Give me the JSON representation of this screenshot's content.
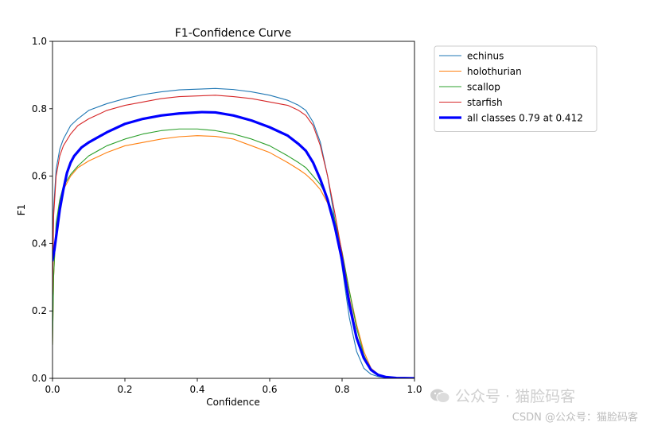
{
  "chart_data": {
    "type": "line",
    "title": "F1-Confidence Curve",
    "xlabel": "Confidence",
    "ylabel": "F1",
    "xlim": [
      0,
      1
    ],
    "ylim": [
      0,
      1
    ],
    "xticks": [
      "0.0",
      "0.2",
      "0.4",
      "0.6",
      "0.8",
      "1.0"
    ],
    "yticks": [
      "0.0",
      "0.2",
      "0.4",
      "0.6",
      "0.8",
      "1.0"
    ],
    "grid": false,
    "legend_position": "outside-top-right",
    "series": [
      {
        "name": "echinus",
        "color": "#1f77b4",
        "x": [
          0.0,
          0.003,
          0.01,
          0.02,
          0.03,
          0.05,
          0.07,
          0.1,
          0.15,
          0.2,
          0.25,
          0.3,
          0.35,
          0.4,
          0.45,
          0.5,
          0.55,
          0.6,
          0.65,
          0.68,
          0.7,
          0.72,
          0.74,
          0.76,
          0.78,
          0.8,
          0.82,
          0.84,
          0.86,
          0.88,
          0.9,
          0.92,
          0.95,
          1.0
        ],
        "y": [
          0.3,
          0.5,
          0.62,
          0.68,
          0.71,
          0.75,
          0.77,
          0.795,
          0.815,
          0.83,
          0.842,
          0.85,
          0.856,
          0.858,
          0.86,
          0.857,
          0.85,
          0.84,
          0.825,
          0.81,
          0.795,
          0.76,
          0.7,
          0.6,
          0.47,
          0.33,
          0.18,
          0.08,
          0.03,
          0.012,
          0.005,
          0.002,
          0.001,
          0.0
        ]
      },
      {
        "name": "holothurian",
        "color": "#ff7f0e",
        "x": [
          0.0,
          0.003,
          0.01,
          0.02,
          0.03,
          0.05,
          0.07,
          0.1,
          0.15,
          0.2,
          0.25,
          0.3,
          0.35,
          0.4,
          0.45,
          0.5,
          0.55,
          0.6,
          0.65,
          0.68,
          0.7,
          0.72,
          0.74,
          0.76,
          0.78,
          0.8,
          0.82,
          0.84,
          0.86,
          0.88,
          0.9,
          0.92,
          0.95,
          1.0
        ],
        "y": [
          0.1,
          0.3,
          0.45,
          0.52,
          0.56,
          0.6,
          0.625,
          0.645,
          0.67,
          0.69,
          0.7,
          0.71,
          0.717,
          0.72,
          0.718,
          0.71,
          0.69,
          0.67,
          0.64,
          0.62,
          0.605,
          0.585,
          0.56,
          0.52,
          0.455,
          0.37,
          0.26,
          0.16,
          0.08,
          0.03,
          0.012,
          0.004,
          0.001,
          0.0
        ]
      },
      {
        "name": "scallop",
        "color": "#2ca02c",
        "x": [
          0.0,
          0.003,
          0.01,
          0.02,
          0.03,
          0.05,
          0.07,
          0.1,
          0.15,
          0.2,
          0.25,
          0.3,
          0.35,
          0.4,
          0.45,
          0.5,
          0.55,
          0.6,
          0.65,
          0.68,
          0.7,
          0.72,
          0.74,
          0.76,
          0.78,
          0.8,
          0.82,
          0.84,
          0.86,
          0.88,
          0.9,
          0.92,
          0.95,
          1.0
        ],
        "y": [
          0.1,
          0.3,
          0.46,
          0.53,
          0.57,
          0.605,
          0.63,
          0.66,
          0.69,
          0.71,
          0.725,
          0.735,
          0.74,
          0.74,
          0.735,
          0.725,
          0.71,
          0.69,
          0.66,
          0.64,
          0.625,
          0.6,
          0.575,
          0.535,
          0.47,
          0.375,
          0.26,
          0.15,
          0.07,
          0.025,
          0.01,
          0.003,
          0.001,
          0.0
        ]
      },
      {
        "name": "starfish",
        "color": "#d62728",
        "x": [
          0.0,
          0.003,
          0.01,
          0.02,
          0.03,
          0.05,
          0.07,
          0.1,
          0.15,
          0.2,
          0.25,
          0.3,
          0.35,
          0.4,
          0.45,
          0.5,
          0.55,
          0.6,
          0.65,
          0.68,
          0.7,
          0.72,
          0.74,
          0.76,
          0.78,
          0.8,
          0.82,
          0.84,
          0.86,
          0.88,
          0.9,
          0.92,
          0.95,
          1.0
        ],
        "y": [
          0.25,
          0.48,
          0.6,
          0.66,
          0.69,
          0.725,
          0.75,
          0.77,
          0.795,
          0.81,
          0.82,
          0.83,
          0.836,
          0.838,
          0.84,
          0.836,
          0.83,
          0.82,
          0.81,
          0.795,
          0.78,
          0.75,
          0.69,
          0.6,
          0.49,
          0.37,
          0.24,
          0.13,
          0.06,
          0.025,
          0.01,
          0.004,
          0.001,
          0.0
        ]
      },
      {
        "name": "all classes 0.79 at 0.412",
        "color": "#0000ff",
        "bold": true,
        "x": [
          0.0,
          0.005,
          0.01,
          0.02,
          0.03,
          0.04,
          0.05,
          0.06,
          0.08,
          0.1,
          0.15,
          0.2,
          0.25,
          0.3,
          0.35,
          0.412,
          0.45,
          0.5,
          0.55,
          0.6,
          0.65,
          0.68,
          0.7,
          0.72,
          0.74,
          0.76,
          0.78,
          0.8,
          0.82,
          0.84,
          0.86,
          0.88,
          0.9,
          0.92,
          0.95,
          1.0
        ],
        "y": [
          0.35,
          0.38,
          0.42,
          0.5,
          0.56,
          0.61,
          0.64,
          0.66,
          0.685,
          0.7,
          0.73,
          0.755,
          0.77,
          0.78,
          0.786,
          0.79,
          0.789,
          0.78,
          0.765,
          0.745,
          0.72,
          0.695,
          0.675,
          0.64,
          0.59,
          0.53,
          0.45,
          0.35,
          0.22,
          0.12,
          0.06,
          0.025,
          0.01,
          0.004,
          0.001,
          0.0
        ]
      }
    ]
  },
  "watermark": {
    "main": "公众号 · 猫脸码客",
    "sub": "CSDN @公众号：猫脸码客"
  }
}
